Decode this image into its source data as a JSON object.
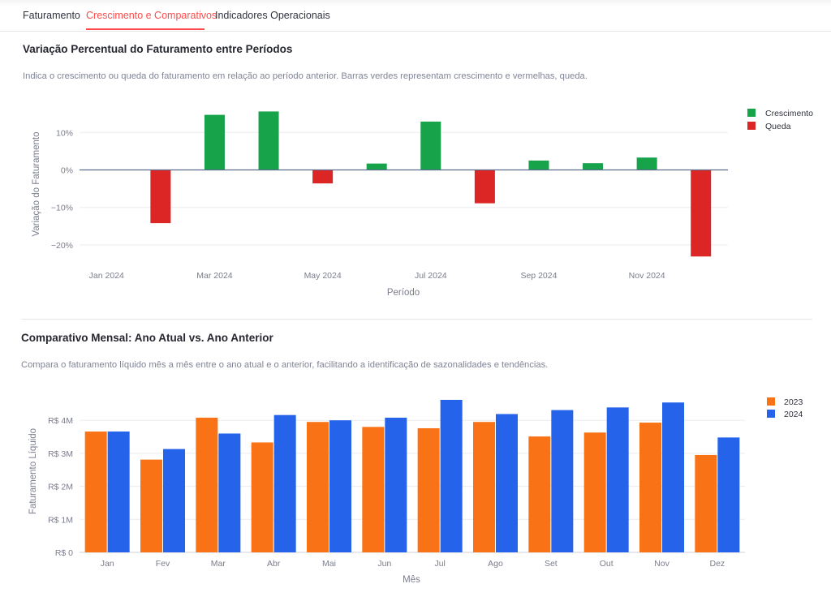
{
  "tabs": [
    {
      "label": "Faturamento",
      "active": false
    },
    {
      "label": "Crescimento e Comparativos",
      "active": true
    },
    {
      "label": "Indicadores Operacionais",
      "active": false
    }
  ],
  "accent_color": "#ff4b4b",
  "section1": {
    "title": "Variação Percentual do Faturamento entre Períodos",
    "description": "Indica o crescimento ou queda do faturamento em relação ao período anterior. Barras verdes representam crescimento e vermelhas, queda."
  },
  "section2": {
    "title": "Comparativo Mensal: Ano Atual vs. Ano Anterior",
    "description": "Compara o faturamento líquido mês a mês entre o ano atual e o anterior, facilitando a identificação de sazonalidades e tendências."
  },
  "chart_data": [
    {
      "type": "bar",
      "xlabel": "Período",
      "ylabel": "Variação do Faturamento",
      "x": [
        "2024-01",
        "2024-02",
        "2024-03",
        "2024-04",
        "2024-05",
        "2024-06",
        "2024-07",
        "2024-08",
        "2024-09",
        "2024-10",
        "2024-11",
        "2024-12"
      ],
      "x_tick_labels": [
        "Jan 2024",
        "Mar 2024",
        "May 2024",
        "Jul 2024",
        "Sep 2024",
        "Nov 2024"
      ],
      "y_tick_labels": [
        "10%",
        "0%",
        "−10%",
        "−20%"
      ],
      "y_ticks": [
        10,
        0,
        -10,
        -20
      ],
      "ylim": [
        -25,
        15
      ],
      "unit": "%",
      "series": [
        {
          "name": "Crescimento",
          "color": "#16a34a",
          "values": [
            null,
            null,
            14.7,
            15.6,
            null,
            1.7,
            12.9,
            null,
            2.5,
            1.8,
            3.3,
            null
          ]
        },
        {
          "name": "Queda",
          "color": "#dc2626",
          "values": [
            null,
            -14.2,
            null,
            null,
            -3.6,
            null,
            null,
            -8.9,
            null,
            null,
            null,
            -23.1
          ]
        }
      ],
      "legend": "right",
      "grid": true
    },
    {
      "type": "bar",
      "xlabel": "Mês",
      "ylabel": "Faturamento Líquido",
      "categories": [
        "Jan",
        "Fev",
        "Mar",
        "Abr",
        "Mai",
        "Jun",
        "Jul",
        "Ago",
        "Set",
        "Out",
        "Nov",
        "Dez"
      ],
      "y_tick_labels": [
        "R$ 4M",
        "R$ 3M",
        "R$ 2M",
        "R$ 1M",
        "R$ 0"
      ],
      "y_ticks": [
        4,
        3,
        2,
        1,
        0
      ],
      "ylim": [
        0,
        4.75
      ],
      "unit": "R$ milhões",
      "series": [
        {
          "name": "2023",
          "color": "#f97316",
          "values": [
            3.66,
            2.81,
            4.08,
            3.33,
            3.95,
            3.8,
            3.76,
            3.95,
            3.51,
            3.63,
            3.93,
            2.95
          ]
        },
        {
          "name": "2024",
          "color": "#2563eb",
          "values": [
            3.66,
            3.13,
            3.6,
            4.16,
            4.0,
            4.08,
            4.62,
            4.19,
            4.31,
            4.39,
            4.54,
            3.48
          ]
        }
      ],
      "legend": "right",
      "grid": true
    }
  ]
}
